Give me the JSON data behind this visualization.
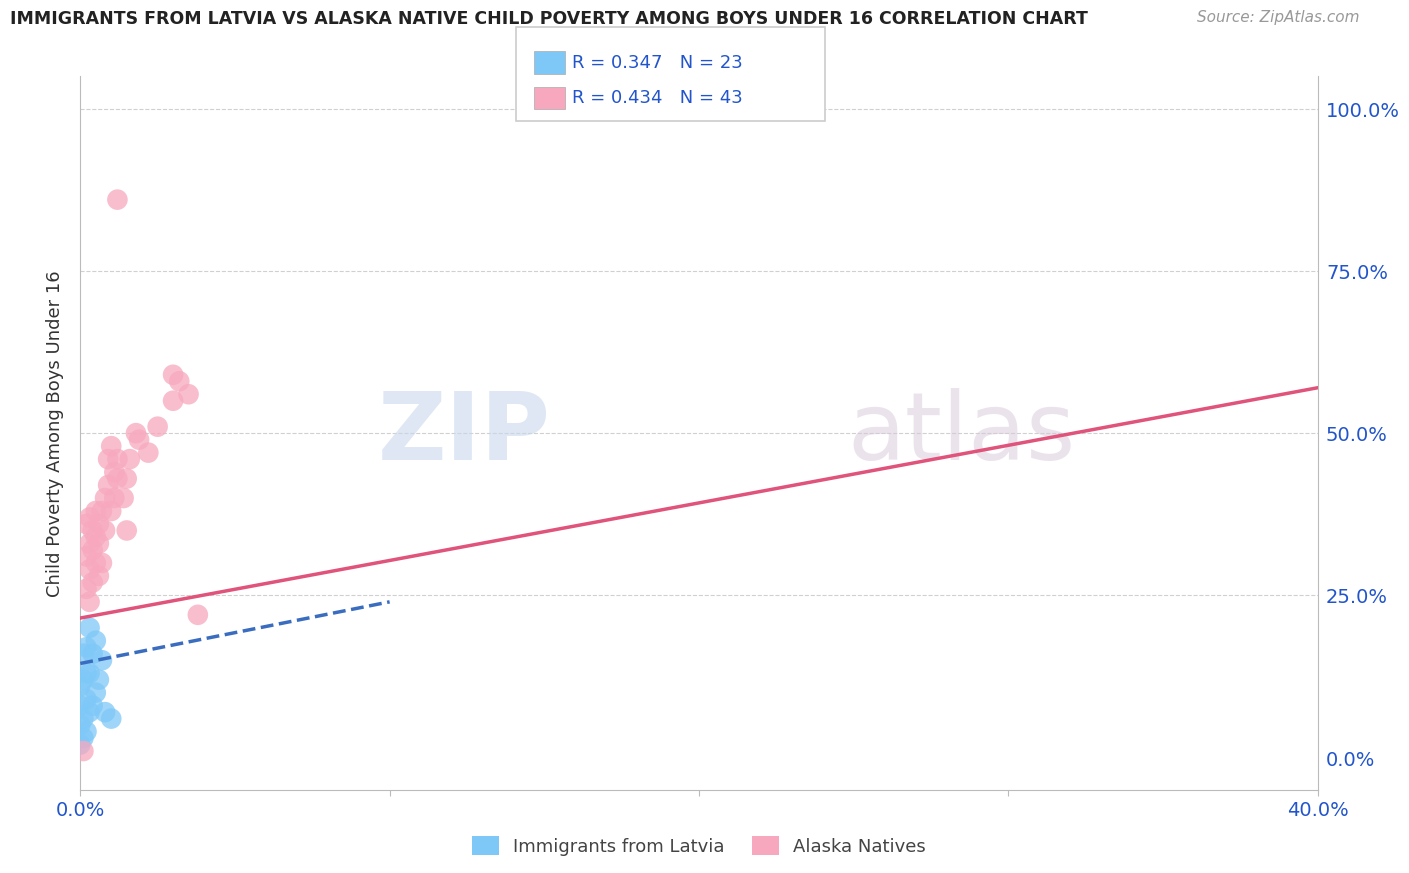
{
  "title": "IMMIGRANTS FROM LATVIA VS ALASKA NATIVE CHILD POVERTY AMONG BOYS UNDER 16 CORRELATION CHART",
  "source": "Source: ZipAtlas.com",
  "ylabel": "Child Poverty Among Boys Under 16",
  "right_yticks": [
    0.0,
    0.25,
    0.5,
    0.75,
    1.0
  ],
  "right_yticklabels": [
    "0.0%",
    "25.0%",
    "50.0%",
    "75.0%",
    "100.0%"
  ],
  "watermark_zip": "ZIP",
  "watermark_atlas": "atlas",
  "legend_line1": "R = 0.347   N = 23",
  "legend_line2": "R = 0.434   N = 43",
  "legend_label1": "Immigrants from Latvia",
  "legend_label2": "Alaska Natives",
  "blue_color": "#7ec8f7",
  "pink_color": "#f7a8be",
  "blue_line_color": "#3a6dbf",
  "pink_line_color": "#e0537a",
  "title_color": "#222222",
  "source_color": "#999999",
  "legend_text_color": "#2255cc",
  "axis_label_color": "#2255cc",
  "grid_color": "#d0d0d0",
  "blue_scatter": [
    [
      0.0,
      0.02
    ],
    [
      0.0,
      0.05
    ],
    [
      0.0,
      0.08
    ],
    [
      0.0,
      0.11
    ],
    [
      0.001,
      0.03
    ],
    [
      0.001,
      0.06
    ],
    [
      0.001,
      0.12
    ],
    [
      0.001,
      0.16
    ],
    [
      0.002,
      0.04
    ],
    [
      0.002,
      0.09
    ],
    [
      0.002,
      0.13
    ],
    [
      0.002,
      0.17
    ],
    [
      0.003,
      0.07
    ],
    [
      0.003,
      0.13
    ],
    [
      0.003,
      0.2
    ],
    [
      0.004,
      0.08
    ],
    [
      0.004,
      0.16
    ],
    [
      0.005,
      0.1
    ],
    [
      0.005,
      0.18
    ],
    [
      0.006,
      0.12
    ],
    [
      0.007,
      0.15
    ],
    [
      0.008,
      0.07
    ],
    [
      0.01,
      0.06
    ]
  ],
  "pink_scatter": [
    [
      0.001,
      0.01
    ],
    [
      0.002,
      0.26
    ],
    [
      0.002,
      0.31
    ],
    [
      0.002,
      0.36
    ],
    [
      0.003,
      0.24
    ],
    [
      0.003,
      0.29
    ],
    [
      0.003,
      0.33
    ],
    [
      0.003,
      0.37
    ],
    [
      0.004,
      0.27
    ],
    [
      0.004,
      0.32
    ],
    [
      0.004,
      0.35
    ],
    [
      0.005,
      0.3
    ],
    [
      0.005,
      0.34
    ],
    [
      0.005,
      0.38
    ],
    [
      0.006,
      0.28
    ],
    [
      0.006,
      0.33
    ],
    [
      0.006,
      0.36
    ],
    [
      0.007,
      0.3
    ],
    [
      0.007,
      0.38
    ],
    [
      0.008,
      0.35
    ],
    [
      0.008,
      0.4
    ],
    [
      0.009,
      0.42
    ],
    [
      0.009,
      0.46
    ],
    [
      0.01,
      0.38
    ],
    [
      0.01,
      0.48
    ],
    [
      0.011,
      0.4
    ],
    [
      0.011,
      0.44
    ],
    [
      0.012,
      0.43
    ],
    [
      0.012,
      0.46
    ],
    [
      0.014,
      0.4
    ],
    [
      0.015,
      0.35
    ],
    [
      0.015,
      0.43
    ],
    [
      0.016,
      0.46
    ],
    [
      0.018,
      0.5
    ],
    [
      0.019,
      0.49
    ],
    [
      0.022,
      0.47
    ],
    [
      0.025,
      0.51
    ],
    [
      0.03,
      0.55
    ],
    [
      0.032,
      0.58
    ],
    [
      0.035,
      0.56
    ],
    [
      0.012,
      0.86
    ],
    [
      0.03,
      0.59
    ],
    [
      0.038,
      0.22
    ]
  ],
  "xlim": [
    0.0,
    0.4
  ],
  "ylim": [
    -0.05,
    1.05
  ],
  "blue_trend_x": [
    0.0,
    0.1
  ],
  "blue_trend_y": [
    0.145,
    0.24
  ],
  "pink_trend_x": [
    0.0,
    0.4
  ],
  "pink_trend_y": [
    0.215,
    0.57
  ],
  "xticks": [
    0.0,
    0.1,
    0.2,
    0.3,
    0.4
  ],
  "xticklabels": [
    "0.0%",
    "",
    "",
    "",
    "40.0%"
  ]
}
